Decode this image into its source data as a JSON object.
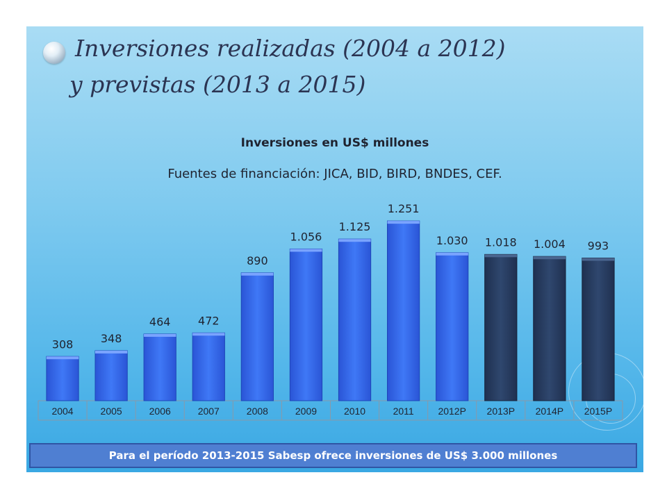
{
  "slide": {
    "title_line1": "Inversiones realizadas (2004 a 2012)",
    "title_line2": "y previstas (2013 a 2015)",
    "bullet_icon": "sphere-bullet-icon",
    "footer": "Para el período 2013-2015 Sabesp ofrece inversiones de US$ 3.000 millones"
  },
  "colors": {
    "realized_bar": "#3a6ef0",
    "planned_bar": "#2a3f63",
    "background_top": "#a9dcf4",
    "background_bottom": "#3aa8e3",
    "banner": "#4f7fd2"
  },
  "chart_data": {
    "type": "bar",
    "title": "Inversiones en US$ millones",
    "subtitle": "Fuentes de financiación: JICA, BID, BIRD, BNDES, CEF.",
    "categories": [
      "2004",
      "2005",
      "2006",
      "2007",
      "2008",
      "2009",
      "2010",
      "2011",
      "2012P",
      "2013P",
      "2014P",
      "2015P"
    ],
    "values": [
      308,
      348,
      464,
      472,
      890,
      1056,
      1125,
      1251,
      1030,
      1018,
      1004,
      993
    ],
    "data_labels": [
      "308",
      "348",
      "464",
      "472",
      "890",
      "1.056",
      "1.125",
      "1.251",
      "1.030",
      "1.018",
      "1.004",
      "993"
    ],
    "bar_groups": [
      "realizada",
      "realizada",
      "realizada",
      "realizada",
      "realizada",
      "realizada",
      "realizada",
      "realizada",
      "realizada",
      "prevista",
      "prevista",
      "prevista"
    ],
    "ylim": [
      0,
      1300
    ],
    "grid": false,
    "legend": "none"
  }
}
